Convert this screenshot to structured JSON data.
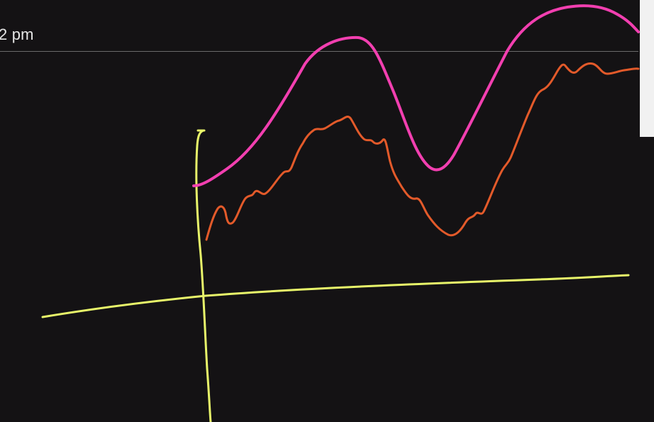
{
  "whiteboard": {
    "time_text": "2 pm"
  },
  "colors": {
    "background": "#141214",
    "axes": "#e8f56a",
    "curve_upper": "#f23fb0",
    "curve_lower": "#e35a2a",
    "guide_line": "#6a6a6a",
    "edge_panel": "#f1f1f1"
  }
}
